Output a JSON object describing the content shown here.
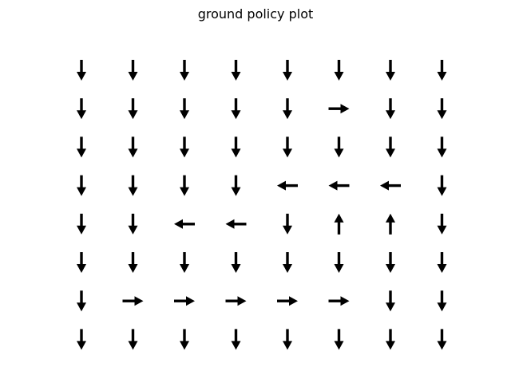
{
  "chart_data": {
    "type": "quiver",
    "title": "ground policy plot",
    "xlabel": "",
    "ylabel": "",
    "axes_visible": false,
    "grid": false,
    "arrow_color": "#000000",
    "columns": 8,
    "rows": 8,
    "row_order": "top-to-bottom",
    "actions": [
      [
        "down",
        "down",
        "down",
        "down",
        "down",
        "down",
        "down",
        "down"
      ],
      [
        "down",
        "down",
        "down",
        "down",
        "down",
        "right",
        "down",
        "down"
      ],
      [
        "down",
        "down",
        "down",
        "down",
        "down",
        "down",
        "down",
        "down"
      ],
      [
        "down",
        "down",
        "down",
        "down",
        "left",
        "left",
        "left",
        "down"
      ],
      [
        "down",
        "down",
        "left",
        "left",
        "down",
        "up",
        "up",
        "down"
      ],
      [
        "down",
        "down",
        "down",
        "down",
        "down",
        "down",
        "down",
        "down"
      ],
      [
        "down",
        "right",
        "right",
        "right",
        "right",
        "right",
        "down",
        "down"
      ],
      [
        "down",
        "down",
        "down",
        "down",
        "down",
        "down",
        "down",
        "down"
      ]
    ]
  }
}
